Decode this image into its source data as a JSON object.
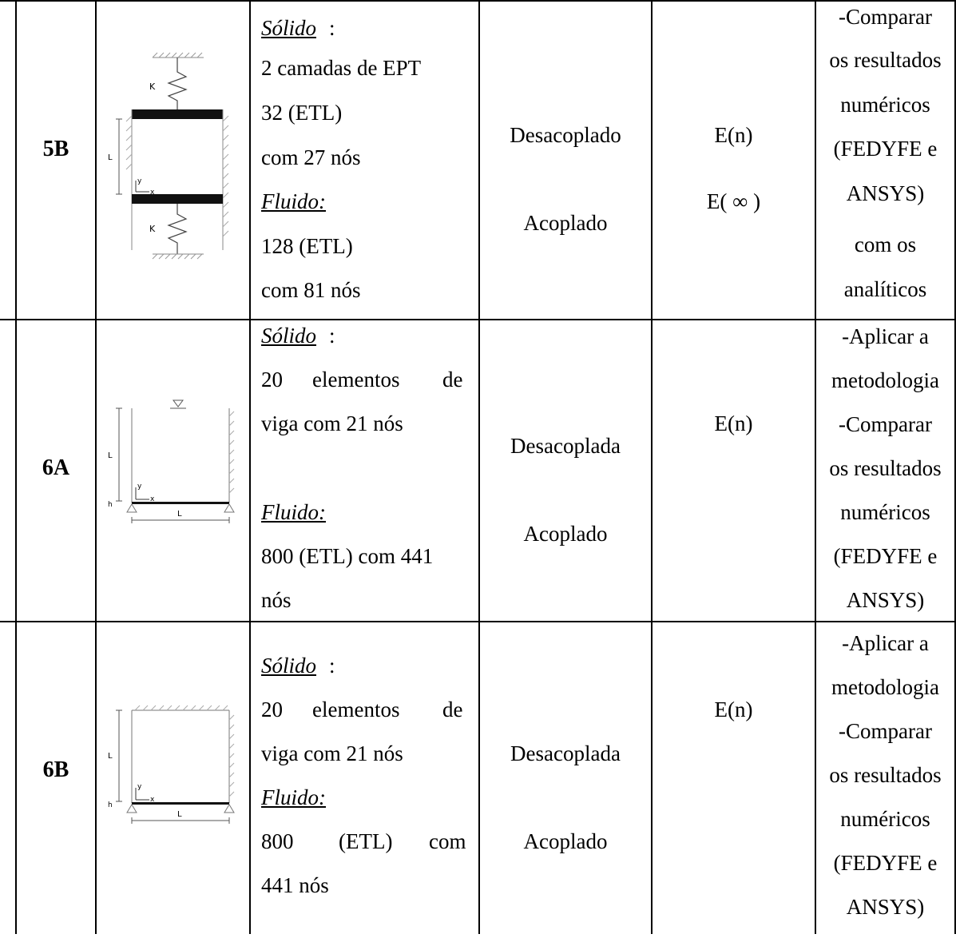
{
  "rows": [
    {
      "id": "5B",
      "solid_heading": "Sólido",
      "solid_lines": [
        "2 camadas de EPT",
        "32 (ETL)",
        "com 27 nós"
      ],
      "fluid_heading": "Fluido",
      "fluid_lines": [
        "128  (ETL)",
        "com 81 nós"
      ],
      "analysis": [
        "Desacoplado",
        "Acoplado"
      ],
      "quantities": [
        "E(n)",
        "E( ∞ )"
      ],
      "objectives": [
        "-Comparar",
        "os resultados",
        "numéricos",
        "(FEDYFE e",
        "ANSYS)",
        "com os",
        "analíticos"
      ],
      "figure_labels": {
        "k_top": "K",
        "k_bottom": "K",
        "length": "L",
        "y": "y",
        "x": "x"
      }
    },
    {
      "id": "6A",
      "solid_heading": "Sólido",
      "solid_lines": [
        "20",
        "elementos",
        "de",
        "viga com 21 nós"
      ],
      "fluid_heading": "Fluido",
      "fluid_lines": [
        "800 (ETL) com 441",
        "nós"
      ],
      "analysis": [
        "Desacoplada",
        "Acoplado"
      ],
      "quantities": [
        "E(n)"
      ],
      "objectives": [
        "-Aplicar a",
        "metodologia",
        "-Comparar",
        "os resultados",
        "numéricos",
        "(FEDYFE e",
        "ANSYS)"
      ],
      "figure_labels": {
        "length_v": "L",
        "length_h": "L",
        "h": "h",
        "y": "y",
        "x": "x"
      }
    },
    {
      "id": "6B",
      "solid_heading": "Sólido",
      "solid_lines": [
        "20",
        "elementos",
        "de",
        "viga com 21 nós"
      ],
      "fluid_heading": "Fluido",
      "fluid_lines": [
        "800",
        "(ETL)",
        "com",
        "441 nós"
      ],
      "analysis": [
        "Desacoplada",
        "Acoplado"
      ],
      "quantities": [
        "E(n)"
      ],
      "objectives": [
        "-Aplicar a",
        "metodologia",
        "-Comparar",
        "os resultados",
        "numéricos",
        "(FEDYFE e",
        "ANSYS)"
      ],
      "figure_labels": {
        "length_v": "L",
        "length_h": "L",
        "h": "h",
        "y": "y",
        "x": "x"
      }
    }
  ]
}
